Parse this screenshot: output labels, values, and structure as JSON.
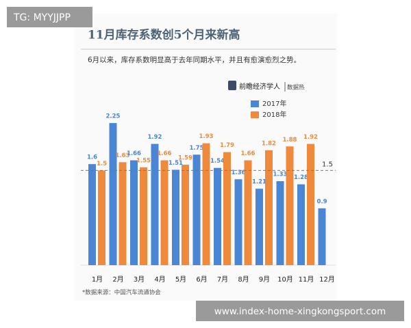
{
  "overlay_tag": "TG: MYYJJPP",
  "watermark": "www.index-home-xingkongsport.com",
  "chart_data": {
    "type": "bar",
    "title": "11月库存系数创5个月来新高",
    "subtitle": "6月以来，库存系数明显高于去年同期水平，并且有愈演愈烈之势。",
    "brand": "前瞻经济学人",
    "brand_tag": "数据热",
    "source": "*数据来源：中国汽车流通协会",
    "categories": [
      "1月",
      "2月",
      "3月",
      "4月",
      "5月",
      "6月",
      "7月",
      "8月",
      "9月",
      "10月",
      "11月",
      "12月"
    ],
    "series": [
      {
        "name": "2017年",
        "color": "#4a86d4",
        "values": [
          1.6,
          2.25,
          1.66,
          1.92,
          1.51,
          1.75,
          1.54,
          1.36,
          1.21,
          1.33,
          1.28,
          0.9
        ]
      },
      {
        "name": "2018年",
        "color": "#ef8a3c",
        "values": [
          1.5,
          1.63,
          1.55,
          1.66,
          1.59,
          1.93,
          1.79,
          1.66,
          1.82,
          1.88,
          1.92,
          null
        ]
      }
    ],
    "reference_line": {
      "value": 1.5,
      "color": "#777777"
    }
  }
}
